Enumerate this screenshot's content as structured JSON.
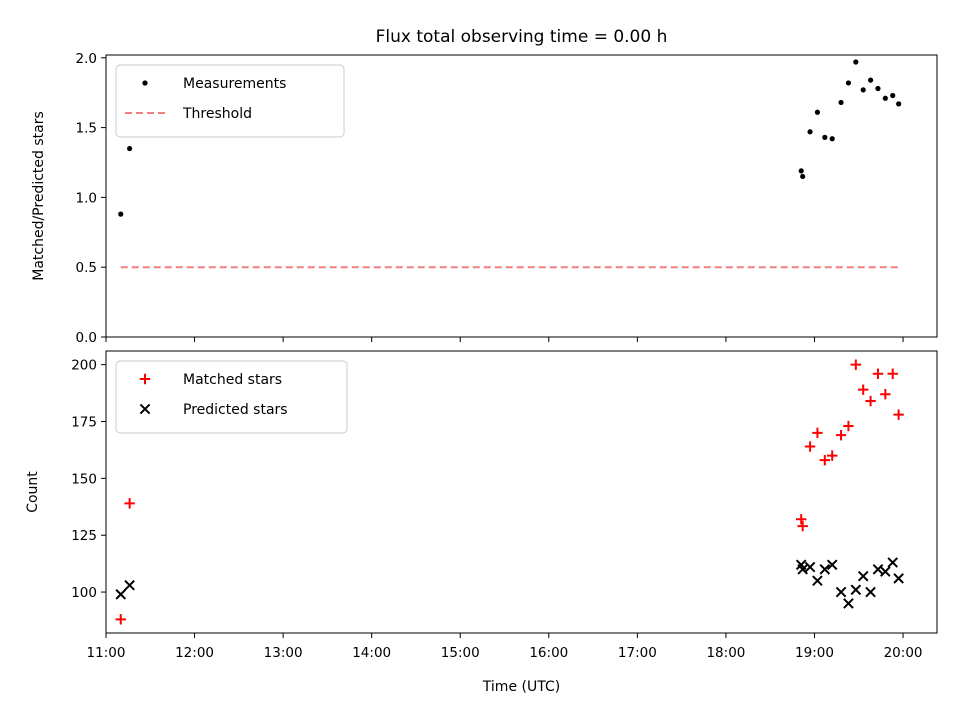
{
  "chart_data": {
    "type": "scatter",
    "title": "Flux total observing time = 0.00 h",
    "xlabel": "Time (UTC)",
    "xlim": [
      "11:00",
      "20:23"
    ],
    "x_ticks": [
      "11:00",
      "12:00",
      "13:00",
      "14:00",
      "15:00",
      "16:00",
      "17:00",
      "18:00",
      "19:00",
      "20:00"
    ],
    "panels": [
      {
        "ylabel": "Matched/Predicted stars",
        "ylim": [
          0,
          2.02
        ],
        "y_ticks": [
          "0.0",
          "0.5",
          "1.0",
          "1.5",
          "2.0"
        ],
        "legend_position": "top-left",
        "series": [
          {
            "name": "Measurements",
            "marker": "dot",
            "color": "#000000",
            "points": [
              [
                "11:10",
                0.88
              ],
              [
                "11:16",
                1.35
              ],
              [
                "18:51",
                1.19
              ],
              [
                "18:52",
                1.15
              ],
              [
                "18:57",
                1.47
              ],
              [
                "19:02",
                1.61
              ],
              [
                "19:07",
                1.43
              ],
              [
                "19:12",
                1.42
              ],
              [
                "19:18",
                1.68
              ],
              [
                "19:23",
                1.82
              ],
              [
                "19:28",
                1.97
              ],
              [
                "19:33",
                1.77
              ],
              [
                "19:38",
                1.84
              ],
              [
                "19:43",
                1.78
              ],
              [
                "19:48",
                1.71
              ],
              [
                "19:53",
                1.73
              ],
              [
                "19:57",
                1.67
              ]
            ]
          },
          {
            "name": "Threshold",
            "line": "dashed",
            "color": "#f08080",
            "points": [
              [
                "11:10",
                0.5
              ],
              [
                "19:57",
                0.5
              ]
            ]
          }
        ]
      },
      {
        "ylabel": "Count",
        "ylim": [
          82,
          206
        ],
        "y_ticks": [
          "100",
          "125",
          "150",
          "175",
          "200"
        ],
        "legend_position": "top-left",
        "series": [
          {
            "name": "Matched stars",
            "marker": "plus",
            "color": "#ff0000",
            "points": [
              [
                "11:10",
                88
              ],
              [
                "11:16",
                139
              ],
              [
                "18:51",
                132
              ],
              [
                "18:52",
                129
              ],
              [
                "18:57",
                164
              ],
              [
                "19:02",
                170
              ],
              [
                "19:07",
                158
              ],
              [
                "19:12",
                160
              ],
              [
                "19:18",
                169
              ],
              [
                "19:23",
                173
              ],
              [
                "19:28",
                200
              ],
              [
                "19:33",
                189
              ],
              [
                "19:38",
                184
              ],
              [
                "19:43",
                196
              ],
              [
                "19:48",
                187
              ],
              [
                "19:53",
                196
              ],
              [
                "19:57",
                178
              ]
            ]
          },
          {
            "name": "Predicted stars",
            "marker": "x",
            "color": "#000000",
            "points": [
              [
                "11:10",
                99
              ],
              [
                "11:16",
                103
              ],
              [
                "18:51",
                112
              ],
              [
                "18:52",
                110
              ],
              [
                "18:57",
                111
              ],
              [
                "19:02",
                105
              ],
              [
                "19:07",
                110
              ],
              [
                "19:12",
                112
              ],
              [
                "19:18",
                100
              ],
              [
                "19:23",
                95
              ],
              [
                "19:28",
                101
              ],
              [
                "19:33",
                107
              ],
              [
                "19:38",
                100
              ],
              [
                "19:43",
                110
              ],
              [
                "19:48",
                109
              ],
              [
                "19:53",
                113
              ],
              [
                "19:57",
                106
              ]
            ]
          }
        ]
      }
    ]
  }
}
